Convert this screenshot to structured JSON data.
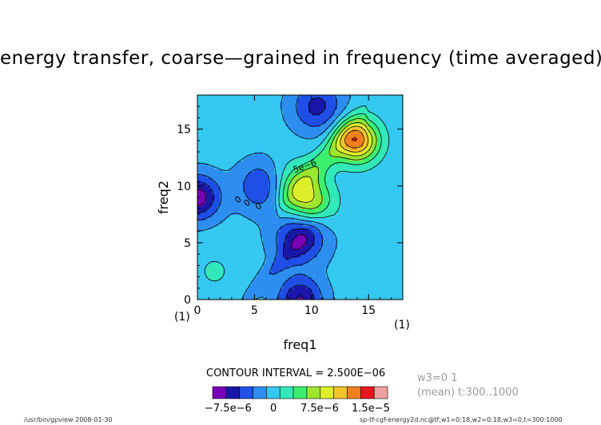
{
  "title": "energy transfer, coarse—grained in frequency (time averaged)",
  "contour_interval": "CONTOUR INTERVAL = 2.500E−06",
  "info": {
    "line1": "w3=0 1",
    "line2": "(mean) t:300..1000"
  },
  "footer": {
    "left": "/usr/bin/gpview   2008-01-30",
    "right": "sp-tf-cgf-energy2d.nc@tf,w1=0:18,w2=0:18,w3=0,t=300:1000"
  },
  "colorbar": {
    "colors": [
      "#7a00b8",
      "#1a16a8",
      "#1f4fe6",
      "#2d8ef0",
      "#35c8f0",
      "#33e8b8",
      "#3cf06e",
      "#9ae630",
      "#ddee2a",
      "#f2c42a",
      "#f0801e",
      "#e8181e",
      "#f0a0a0"
    ],
    "labels": [
      "−7.5e−6",
      "0",
      "7.5e−6",
      "1.5e−5"
    ]
  },
  "chart_data": {
    "type": "heatmap",
    "title": "energy transfer, coarse—grained in frequency (time averaged)",
    "xlabel": "freq1",
    "ylabel": "freq2",
    "xlim": [
      0,
      18
    ],
    "ylim": [
      0,
      18
    ],
    "xticks": [
      0,
      5,
      10,
      15
    ],
    "yticks": [
      0,
      5,
      10,
      15
    ],
    "x_unit_marker": "(1)",
    "y_unit_marker": "(1)",
    "contour_interval": 2.5e-06,
    "contour_labels": [
      "5e−6",
      "0",
      "0",
      "0"
    ],
    "features": [
      {
        "kind": "maximum",
        "x": 14,
        "y": 14,
        "value": 1.75e-05
      },
      {
        "kind": "maximum",
        "x": 10,
        "y": 8.5,
        "value": 1e-05
      },
      {
        "kind": "maximum",
        "x": 8,
        "y": 10,
        "value": 9e-06
      },
      {
        "kind": "minimum",
        "x": 9,
        "y": 5.5,
        "value": -6e-06
      },
      {
        "kind": "minimum",
        "x": 6,
        "y": 10,
        "value": -5.5e-06
      },
      {
        "kind": "minimum",
        "x": 9,
        "y": 0,
        "value": -6.5e-06
      },
      {
        "kind": "minimum",
        "x": 0,
        "y": 9,
        "value": -7.5e-06
      },
      {
        "kind": "minimum",
        "x": 10.5,
        "y": 17,
        "value": -4.5e-06
      },
      {
        "kind": "maximum",
        "x": 1.5,
        "y": 2.5,
        "value": 4e-06
      },
      {
        "kind": "maximum",
        "x": 17,
        "y": 4,
        "value": 3e-06
      },
      {
        "kind": "maximum",
        "x": 4,
        "y": 15,
        "value": 2.5e-06
      }
    ]
  }
}
